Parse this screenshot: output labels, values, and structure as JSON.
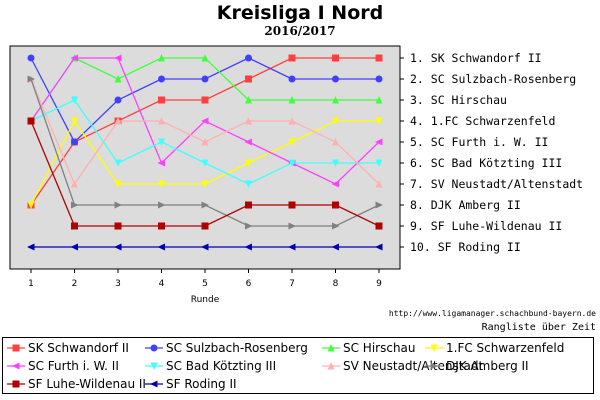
{
  "chart_data": {
    "type": "line",
    "title": "Kreisliga I Nord",
    "subtitle": "2016/2017",
    "xlabel": "Runde",
    "x": [
      1,
      2,
      3,
      4,
      5,
      6,
      7,
      8,
      9
    ],
    "ylim": [
      1,
      10
    ],
    "y_inverted": true,
    "grid": false,
    "ranking_labels": [
      "1. SK Schwandorf II",
      "2. SC Sulzbach-Rosenberg",
      "3. SC Hirschau",
      "4. 1.FC Schwarzenfeld",
      "5. SC Furth i. W. II",
      "6. SC Bad Kötzting III",
      "7. SV Neustadt/Altenstadt",
      "8. DJK Amberg II",
      "9. SF Luhe-Wildenau II",
      "10. SF Roding II"
    ],
    "series": [
      {
        "name": "SK Schwandorf II",
        "color": "#ff4040",
        "marker": "square",
        "values": [
          8,
          5,
          4,
          3,
          3,
          2,
          1,
          1,
          1
        ]
      },
      {
        "name": "SC Sulzbach-Rosenberg",
        "color": "#4040ff",
        "marker": "circle",
        "values": [
          1,
          5,
          3,
          2,
          2,
          1,
          2,
          2,
          2
        ]
      },
      {
        "name": "SC Hirschau",
        "color": "#40ff40",
        "marker": "triangle-up",
        "values": [
          4,
          1,
          2,
          1,
          1,
          3,
          3,
          3,
          3
        ]
      },
      {
        "name": "1.FC Schwarzenfeld",
        "color": "#ffff00",
        "marker": "triangle-down",
        "values": [
          8,
          4,
          7,
          7,
          7,
          6,
          5,
          4,
          4
        ]
      },
      {
        "name": "SC Furth i. W. II",
        "color": "#ff40ff",
        "marker": "triangle-left",
        "values": [
          4,
          1,
          1,
          6,
          4,
          5,
          6,
          7,
          5
        ]
      },
      {
        "name": "SC Bad Kötzting III",
        "color": "#40ffff",
        "marker": "triangle-down",
        "values": [
          4,
          3,
          6,
          5,
          6,
          7,
          6,
          6,
          6
        ]
      },
      {
        "name": "SV Neustadt/Altenstadt",
        "color": "#ffb0b0",
        "marker": "triangle-up",
        "values": [
          2,
          7,
          4,
          4,
          5,
          4,
          4,
          5,
          7
        ]
      },
      {
        "name": "DJK Amberg II",
        "color": "#808080",
        "marker": "triangle-right",
        "values": [
          2,
          8,
          8,
          8,
          8,
          9,
          9,
          9,
          8
        ]
      },
      {
        "name": "SF Luhe-Wildenau II",
        "color": "#b00000",
        "marker": "square",
        "values": [
          4,
          9,
          9,
          9,
          9,
          8,
          8,
          8,
          9
        ]
      },
      {
        "name": "SF Roding II",
        "color": "#0000b0",
        "marker": "triangle-left",
        "values": [
          10,
          10,
          10,
          10,
          10,
          10,
          10,
          10,
          10
        ]
      }
    ]
  },
  "footer": {
    "source": "http://www.ligamanager.schachbund-bayern.de",
    "caption": "Rangliste über Zeit"
  }
}
